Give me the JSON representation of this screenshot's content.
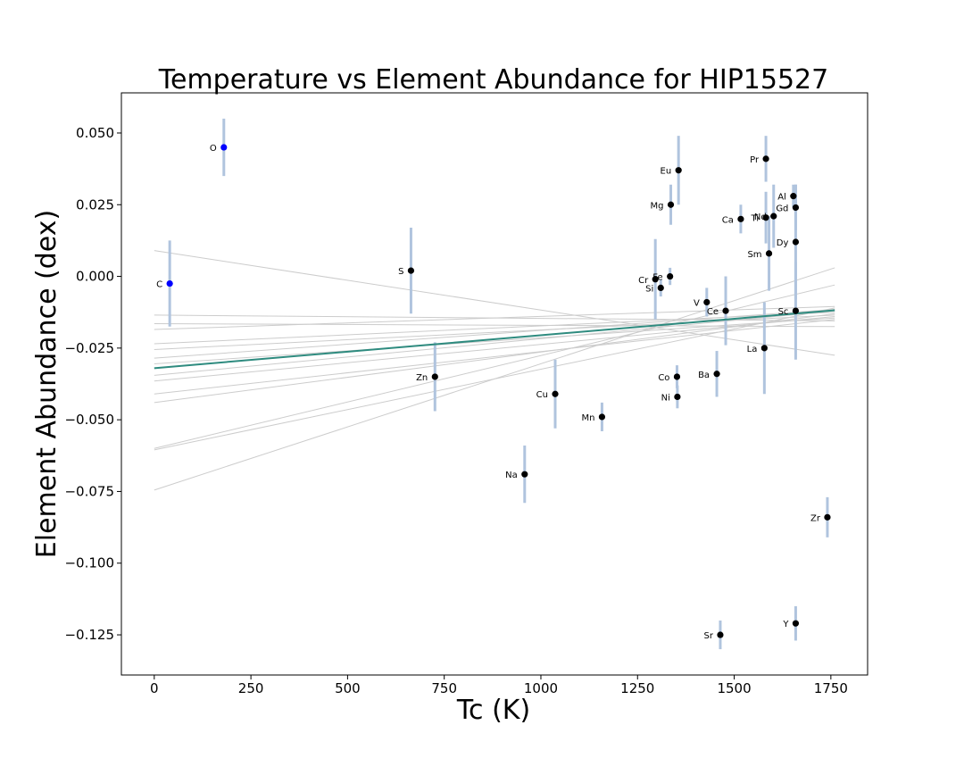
{
  "chart_data": {
    "type": "scatter",
    "title": "Temperature vs Element Abundance for HIP15527",
    "xlabel": "Tc (K)",
    "ylabel": "Element Abundance (dex)",
    "xlim": [
      -85,
      1845
    ],
    "ylim": [
      -0.139,
      0.064
    ],
    "x_ticks": [
      0,
      250,
      500,
      750,
      1000,
      1250,
      1500,
      1750
    ],
    "y_ticks": [
      0.05,
      0.025,
      0.0,
      -0.025,
      -0.05,
      -0.075,
      -0.1,
      -0.125
    ],
    "y_tick_labels": [
      "0.050",
      "0.025",
      "0.000",
      "−0.025",
      "−0.050",
      "−0.075",
      "−0.100",
      "−0.125"
    ],
    "grid": false,
    "colors": {
      "volatile_points": "#0000ff",
      "refractory_points": "#000000",
      "error_bars": "#b0c4de",
      "fit_line": "#2e8b7f",
      "bootstrap_lines": "#cccccc"
    },
    "points": [
      {
        "element": "C",
        "tc": 40,
        "abundance": -0.0025,
        "err": 0.015,
        "color": "blue"
      },
      {
        "element": "O",
        "tc": 180,
        "abundance": 0.045,
        "err": 0.01,
        "color": "blue"
      },
      {
        "element": "S",
        "tc": 664,
        "abundance": 0.002,
        "err": 0.015,
        "color": "black"
      },
      {
        "element": "Zn",
        "tc": 726,
        "abundance": -0.035,
        "err": 0.012,
        "color": "black"
      },
      {
        "element": "Na",
        "tc": 958,
        "abundance": -0.069,
        "err": 0.01,
        "color": "black"
      },
      {
        "element": "Cu",
        "tc": 1037,
        "abundance": -0.041,
        "err": 0.012,
        "color": "black"
      },
      {
        "element": "Mn",
        "tc": 1158,
        "abundance": -0.049,
        "err": 0.005,
        "color": "black"
      },
      {
        "element": "Cr",
        "tc": 1296,
        "abundance": -0.001,
        "err": 0.014,
        "color": "black"
      },
      {
        "element": "Si",
        "tc": 1310,
        "abundance": -0.004,
        "err": 0.003,
        "color": "black"
      },
      {
        "element": "Fe",
        "tc": 1334,
        "abundance": 0.0,
        "err": 0.003,
        "color": "black"
      },
      {
        "element": "Mg",
        "tc": 1336,
        "abundance": 0.025,
        "err": 0.007,
        "color": "black"
      },
      {
        "element": "Co",
        "tc": 1352,
        "abundance": -0.035,
        "err": 0.004,
        "color": "black"
      },
      {
        "element": "Ni",
        "tc": 1353,
        "abundance": -0.042,
        "err": 0.004,
        "color": "black"
      },
      {
        "element": "Eu",
        "tc": 1356,
        "abundance": 0.037,
        "err": 0.012,
        "color": "black"
      },
      {
        "element": "V",
        "tc": 1429,
        "abundance": -0.009,
        "err": 0.005,
        "color": "black"
      },
      {
        "element": "Ba",
        "tc": 1455,
        "abundance": -0.034,
        "err": 0.008,
        "color": "black"
      },
      {
        "element": "Sr",
        "tc": 1464,
        "abundance": -0.125,
        "err": 0.005,
        "color": "black"
      },
      {
        "element": "Ce",
        "tc": 1478,
        "abundance": -0.012,
        "err": 0.012,
        "color": "black"
      },
      {
        "element": "Ca",
        "tc": 1517,
        "abundance": 0.02,
        "err": 0.005,
        "color": "black"
      },
      {
        "element": "La",
        "tc": 1578,
        "abundance": -0.025,
        "err": 0.016,
        "color": "black"
      },
      {
        "element": "Ti",
        "tc": 1582,
        "abundance": 0.0205,
        "err": 0.009,
        "color": "black"
      },
      {
        "element": "Pr",
        "tc": 1582,
        "abundance": 0.041,
        "err": 0.008,
        "color": "black"
      },
      {
        "element": "Sm",
        "tc": 1590,
        "abundance": 0.008,
        "err": 0.013,
        "color": "black"
      },
      {
        "element": "Nd",
        "tc": 1602,
        "abundance": 0.021,
        "err": 0.011,
        "color": "black"
      },
      {
        "element": "Al",
        "tc": 1653,
        "abundance": 0.028,
        "err": 0.004,
        "color": "black"
      },
      {
        "element": "Gd",
        "tc": 1659,
        "abundance": 0.024,
        "err": 0.008,
        "color": "black"
      },
      {
        "element": "Dy",
        "tc": 1659,
        "abundance": 0.012,
        "err": 0.02,
        "color": "black"
      },
      {
        "element": "Sc",
        "tc": 1659,
        "abundance": -0.012,
        "err": 0.017,
        "color": "black"
      },
      {
        "element": "Y",
        "tc": 1659,
        "abundance": -0.121,
        "err": 0.006,
        "color": "black"
      },
      {
        "element": "Zr",
        "tc": 1741,
        "abundance": -0.084,
        "err": 0.007,
        "color": "black"
      }
    ],
    "fit_line": {
      "x": [
        0,
        1760
      ],
      "y": [
        -0.032,
        -0.0118
      ]
    },
    "bootstrap_lines": [
      {
        "x": [
          0,
          1760
        ],
        "y": [
          0.009,
          -0.0275
        ]
      },
      {
        "x": [
          0,
          1760
        ],
        "y": [
          -0.0135,
          -0.0155
        ]
      },
      {
        "x": [
          0,
          1760
        ],
        "y": [
          -0.0165,
          -0.0175
        ]
      },
      {
        "x": [
          0,
          1760
        ],
        "y": [
          -0.0185,
          -0.0105
        ]
      },
      {
        "x": [
          0,
          1760
        ],
        "y": [
          -0.0235,
          -0.0125
        ]
      },
      {
        "x": [
          0,
          1760
        ],
        "y": [
          -0.0255,
          -0.0135
        ]
      },
      {
        "x": [
          0,
          1760
        ],
        "y": [
          -0.0285,
          -0.0115
        ]
      },
      {
        "x": [
          0,
          1760
        ],
        "y": [
          -0.0305,
          -0.0145
        ]
      },
      {
        "x": [
          0,
          1760
        ],
        "y": [
          -0.0345,
          -0.012
        ]
      },
      {
        "x": [
          0,
          1760
        ],
        "y": [
          -0.0365,
          -0.014
        ]
      },
      {
        "x": [
          0,
          1760
        ],
        "y": [
          -0.041,
          -0.015
        ]
      },
      {
        "x": [
          0,
          1760
        ],
        "y": [
          -0.044,
          -0.013
        ]
      },
      {
        "x": [
          0,
          1760
        ],
        "y": [
          -0.06,
          -0.003
        ]
      },
      {
        "x": [
          0,
          1760
        ],
        "y": [
          -0.0605,
          -0.011
        ]
      },
      {
        "x": [
          0,
          1760
        ],
        "y": [
          -0.0745,
          0.003
        ]
      }
    ]
  }
}
